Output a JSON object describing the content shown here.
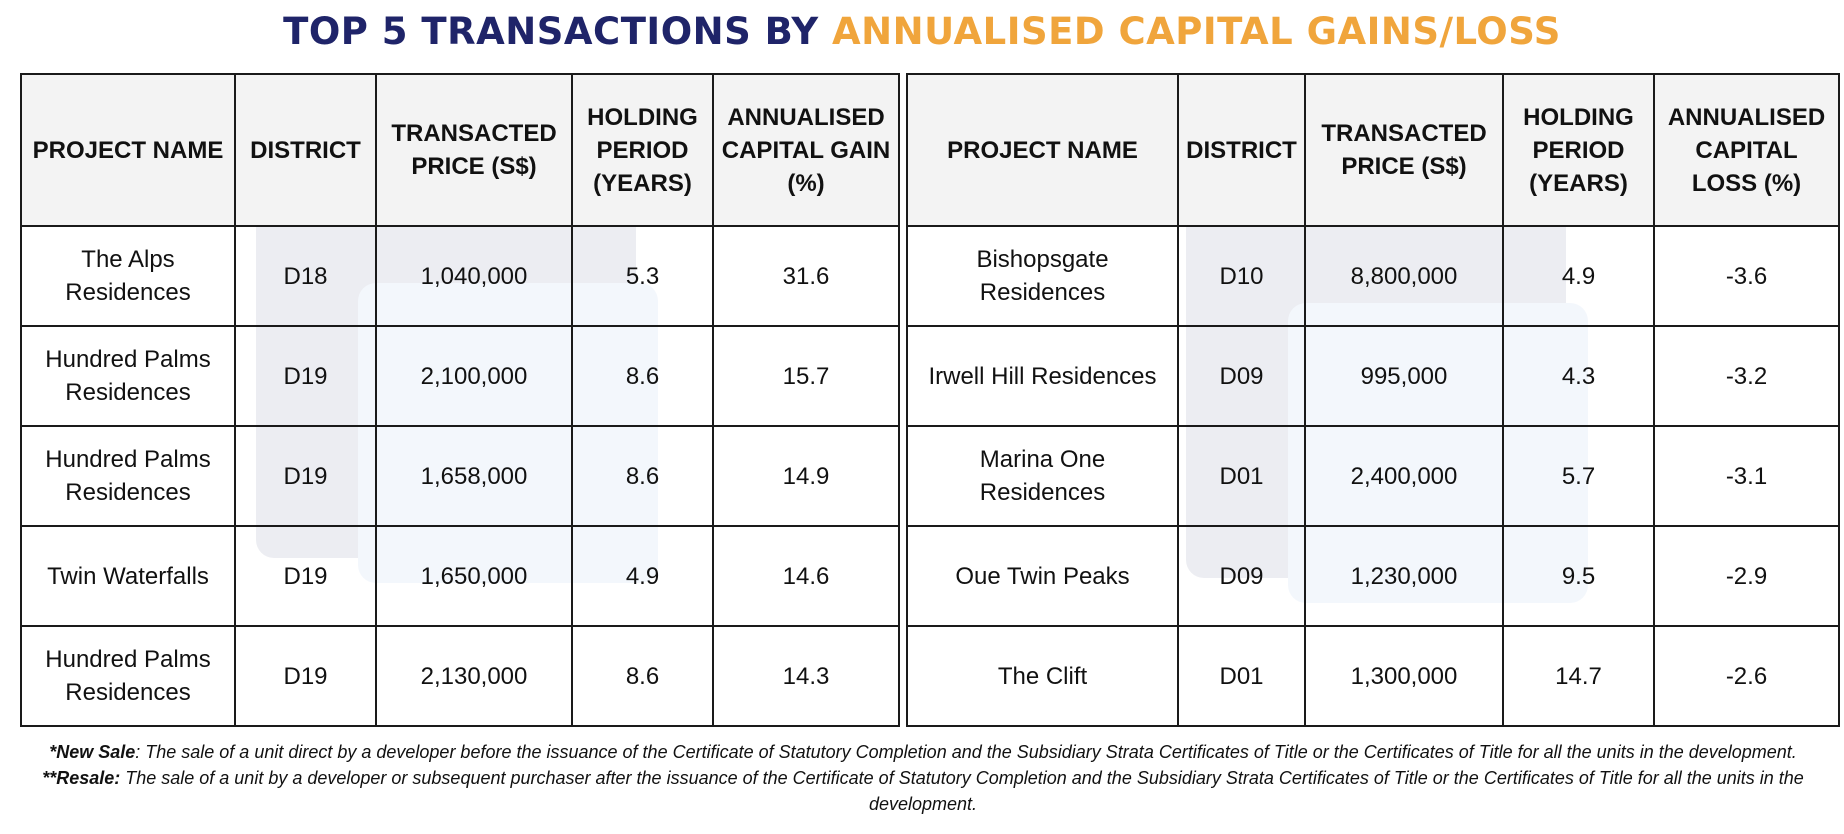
{
  "title": {
    "part1": "TOP 5 TRANSACTIONS BY",
    "part2": "ANNUALISED CAPITAL GAINS/LOSS"
  },
  "gains": {
    "headers": [
      "PROJECT NAME",
      "DISTRICT",
      "TRANSACTED PRICE (S$)",
      "HOLDING PERIOD (YEARS)",
      "ANNUALISED CAPITAL GAIN (%)"
    ],
    "rows": [
      [
        "The Alps Residences",
        "D18",
        "1,040,000",
        "5.3",
        "31.6"
      ],
      [
        "Hundred Palms Residences",
        "D19",
        "2,100,000",
        "8.6",
        "15.7"
      ],
      [
        "Hundred Palms Residences",
        "D19",
        "1,658,000",
        "8.6",
        "14.9"
      ],
      [
        "Twin Waterfalls",
        "D19",
        "1,650,000",
        "4.9",
        "14.6"
      ],
      [
        "Hundred Palms Residences",
        "D19",
        "2,130,000",
        "8.6",
        "14.3"
      ]
    ]
  },
  "losses": {
    "headers": [
      "PROJECT NAME",
      "DISTRICT",
      "TRANSACTED PRICE (S$)",
      "HOLDING PERIOD (YEARS)",
      "ANNUALISED CAPITAL LOSS (%)"
    ],
    "rows": [
      [
        "Bishopsgate Residences",
        "D10",
        "8,800,000",
        "4.9",
        "-3.6"
      ],
      [
        "Irwell Hill Residences",
        "D09",
        "995,000",
        "4.3",
        "-3.2"
      ],
      [
        "Marina One Residences",
        "D01",
        "2,400,000",
        "5.7",
        "-3.1"
      ],
      [
        "Oue Twin Peaks",
        "D09",
        "1,230,000",
        "9.5",
        "-2.9"
      ],
      [
        "The Clift",
        "D01",
        "1,300,000",
        "14.7",
        "-2.6"
      ]
    ]
  },
  "notes": {
    "new_sale_label": "*New Sale",
    "new_sale_text": ": The sale of a unit direct by a developer before the issuance of the Certificate of Statutory Completion and the Subsidiary Strata Certificates of Title or the Certificates of Title for all the units in the development.",
    "resale_label": "**Resale:",
    "resale_text": " The sale of a unit by a developer or subsequent purchaser after the issuance of the Certificate of Statutory Completion and the Subsidiary Strata Certificates of Title or the Certificates of Title for all the units in the development."
  }
}
